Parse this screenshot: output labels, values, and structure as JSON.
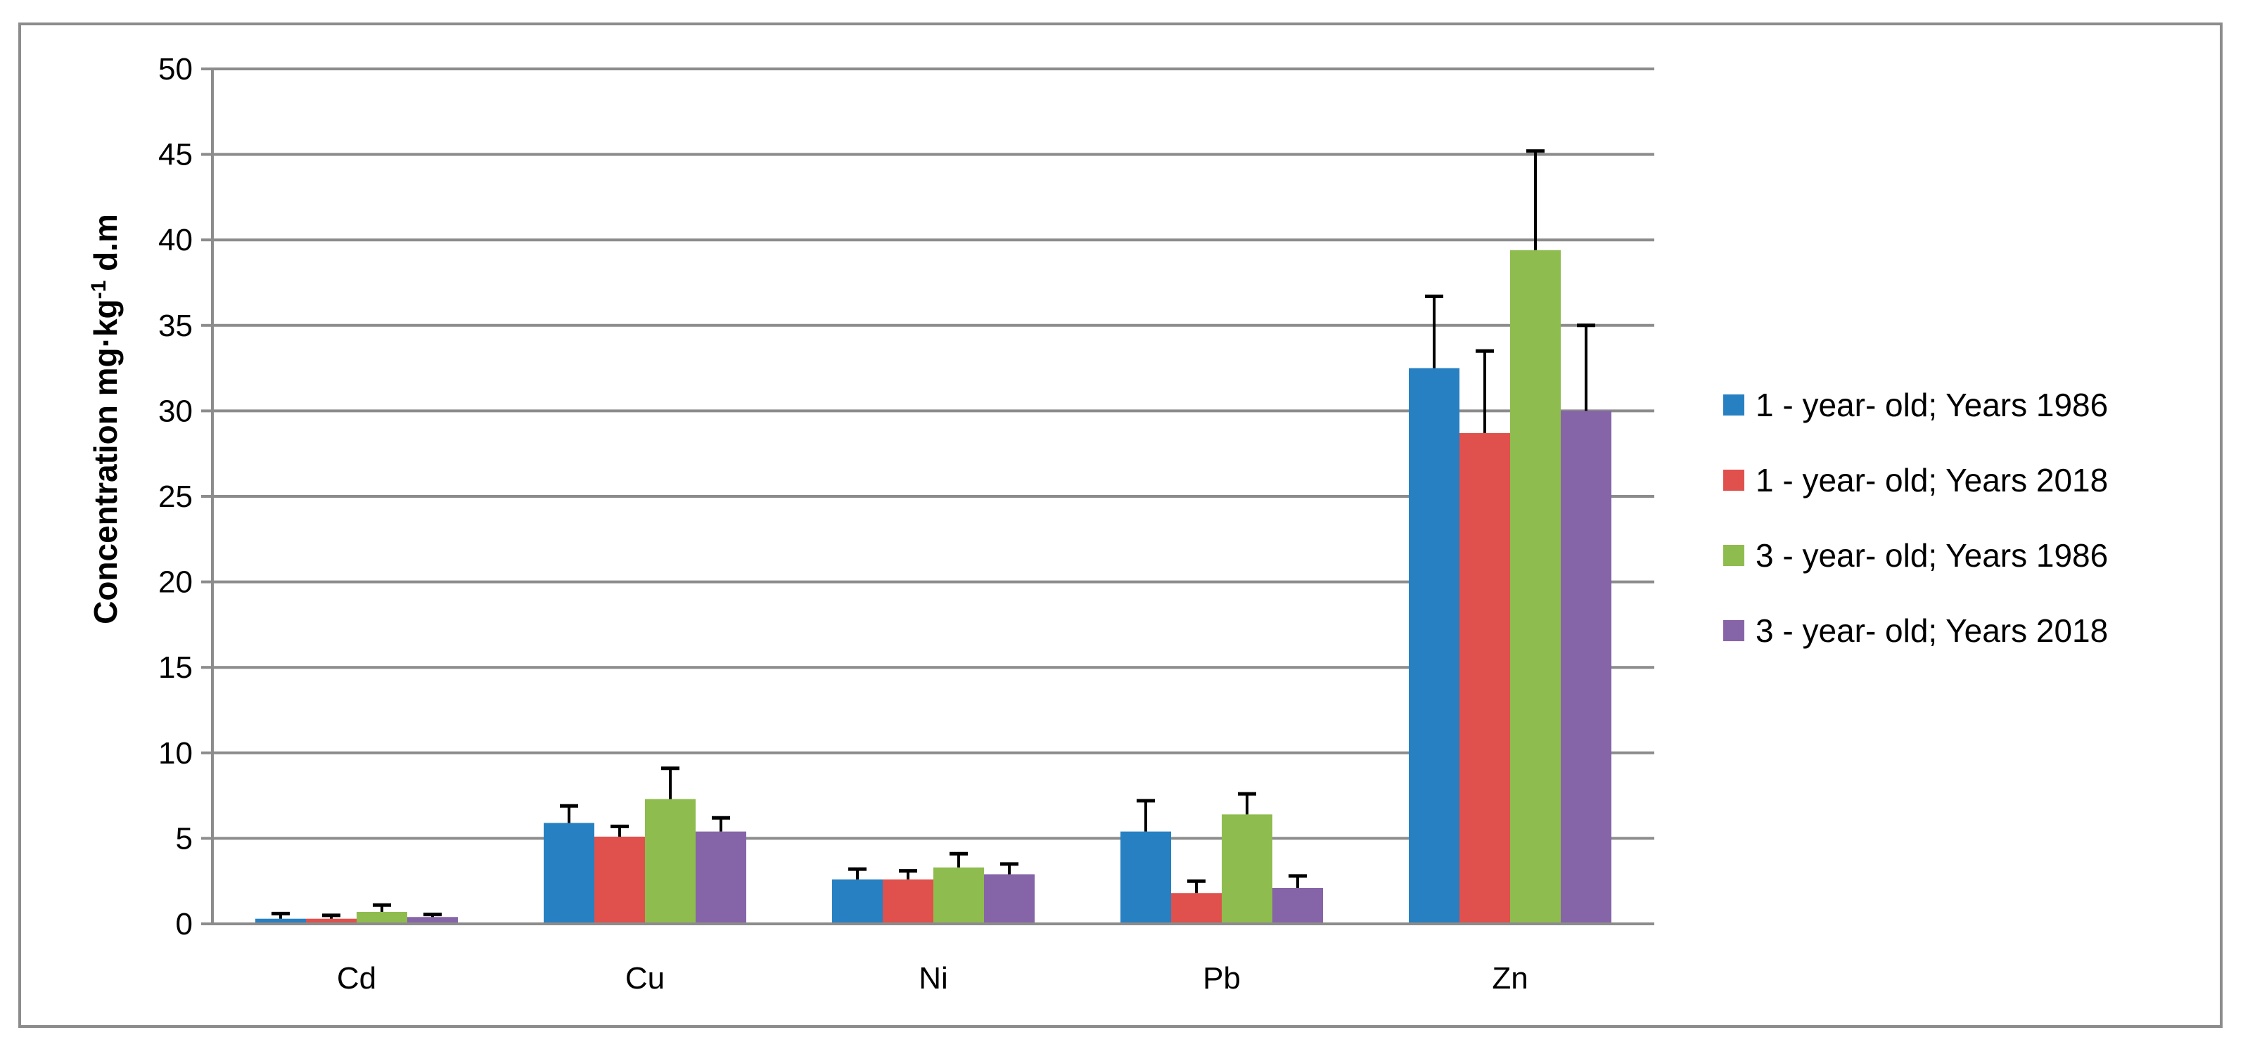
{
  "chart_data": {
    "type": "bar",
    "title": "",
    "xlabel": "",
    "ylabel": "Concentration mg·kg",
    "ylabel_sup": "-1",
    "ylabel_suffix": " d.m",
    "ylim": [
      0,
      50
    ],
    "yticks": [
      0,
      5,
      10,
      15,
      20,
      25,
      30,
      35,
      40,
      45,
      50
    ],
    "grid": "horizontal",
    "legend_position": "right",
    "error_bars": true,
    "categories": [
      "Cd",
      "Cu",
      "Ni",
      "Pb",
      "Zn"
    ],
    "series": [
      {
        "name": "1 - year- old; Years 1986",
        "color": "#2680c2",
        "values": [
          0.3,
          5.9,
          2.6,
          5.4,
          32.5
        ],
        "errors": [
          0.3,
          1.0,
          0.6,
          1.8,
          4.2
        ]
      },
      {
        "name": "1 - year- old; Years 2018",
        "color": "#e0504c",
        "values": [
          0.3,
          5.1,
          2.6,
          1.8,
          28.7
        ],
        "errors": [
          0.2,
          0.6,
          0.5,
          0.7,
          4.8
        ]
      },
      {
        "name": "3 - year- old; Years 1986",
        "color": "#8fbc4e",
        "values": [
          0.7,
          7.3,
          3.3,
          6.4,
          39.4
        ],
        "errors": [
          0.4,
          1.8,
          0.8,
          1.2,
          5.8
        ]
      },
      {
        "name": "3 - year- old; Years 2018",
        "color": "#8664a8",
        "values": [
          0.4,
          5.4,
          2.9,
          2.1,
          30.0
        ],
        "errors": [
          0.15,
          0.8,
          0.6,
          0.7,
          5.0
        ]
      }
    ]
  }
}
